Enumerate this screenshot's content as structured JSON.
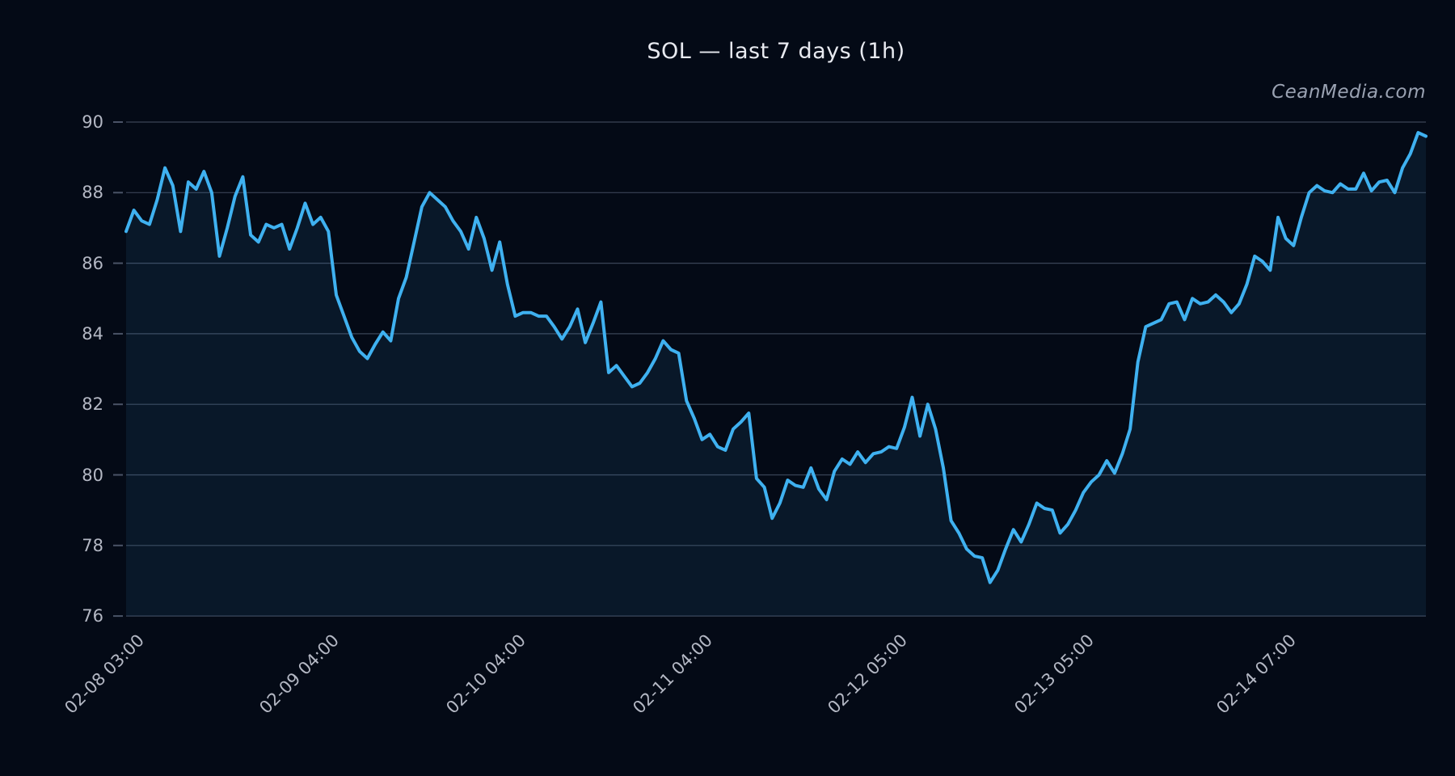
{
  "page": {
    "background": "#040a16"
  },
  "header": {
    "title": "SOL — last 7 days (1h)",
    "watermark": "CeanMedia.com"
  },
  "chart_data": {
    "type": "line",
    "title": "SOL — last 7 days (1h)",
    "symbol": "SOL",
    "interval": "1h",
    "legend": "none",
    "grid": "horizontal-only",
    "ylim": [
      76,
      90.5
    ],
    "y_ticks": [
      76,
      78,
      80,
      82,
      84,
      86,
      88,
      90
    ],
    "x_tick_labels": [
      "02-08 03:00",
      "02-09 04:00",
      "02-10 04:00",
      "02-11 04:00",
      "02-12 05:00",
      "02-13 05:00",
      "02-14 07:00"
    ],
    "x_tick_indices": [
      0,
      25,
      49,
      73,
      98,
      122,
      148
    ],
    "colors": {
      "line": "#3fb1f0",
      "fill": "rgba(64,170,240,0.085)",
      "grid": "#3a4457",
      "axis_tick": "#4a5366",
      "tick_label": "#b4b8c4",
      "title": "#e8eaf0",
      "watermark": "#9aa2b2"
    },
    "series": [
      {
        "name": "SOL",
        "values": [
          86.9,
          87.5,
          87.2,
          87.1,
          87.8,
          88.7,
          88.2,
          86.9,
          88.3,
          88.1,
          88.6,
          88.0,
          86.2,
          87.0,
          87.9,
          88.45,
          86.8,
          86.6,
          87.1,
          87.0,
          87.1,
          86.4,
          87.0,
          87.7,
          87.1,
          87.3,
          86.9,
          85.1,
          84.5,
          83.9,
          83.5,
          83.3,
          83.7,
          84.05,
          83.8,
          85.0,
          85.6,
          86.6,
          87.6,
          88.0,
          87.8,
          87.6,
          87.2,
          86.9,
          86.4,
          87.3,
          86.7,
          85.8,
          86.6,
          85.4,
          84.5,
          84.6,
          84.6,
          84.5,
          84.5,
          84.2,
          83.85,
          84.2,
          84.7,
          83.75,
          84.3,
          84.9,
          82.9,
          83.1,
          82.8,
          82.5,
          82.6,
          82.9,
          83.3,
          83.8,
          83.55,
          83.45,
          82.1,
          81.6,
          81.0,
          81.15,
          80.8,
          80.7,
          81.3,
          81.5,
          81.75,
          79.9,
          79.65,
          78.77,
          79.2,
          79.85,
          79.7,
          79.65,
          80.2,
          79.6,
          79.3,
          80.1,
          80.45,
          80.3,
          80.65,
          80.35,
          80.6,
          80.65,
          80.8,
          80.75,
          81.35,
          82.2,
          81.1,
          82.0,
          81.3,
          80.2,
          78.7,
          78.35,
          77.9,
          77.7,
          77.65,
          76.95,
          77.3,
          77.9,
          78.45,
          78.1,
          78.6,
          79.2,
          79.05,
          79.0,
          78.35,
          78.6,
          79.0,
          79.5,
          79.8,
          80.0,
          80.4,
          80.05,
          80.6,
          81.3,
          83.2,
          84.2,
          84.3,
          84.4,
          84.85,
          84.9,
          84.4,
          85.0,
          84.85,
          84.9,
          85.1,
          84.9,
          84.6,
          84.85,
          85.4,
          86.2,
          86.05,
          85.8,
          87.3,
          86.7,
          86.5,
          87.3,
          88.0,
          88.2,
          88.05,
          88.0,
          88.25,
          88.1,
          88.1,
          88.55,
          88.05,
          88.3,
          88.35,
          88.0,
          88.7,
          89.1,
          89.7,
          89.6
        ]
      }
    ]
  }
}
